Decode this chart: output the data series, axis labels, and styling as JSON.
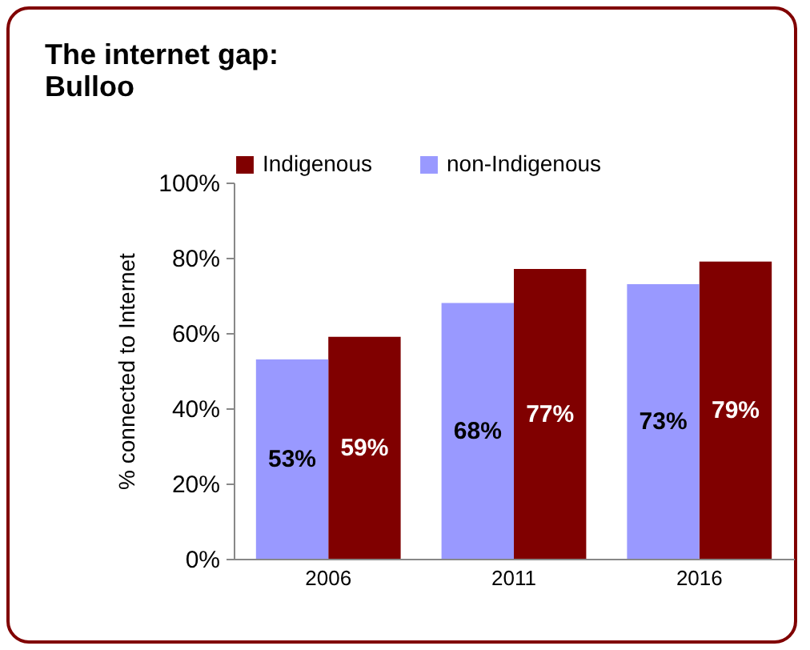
{
  "chart_data": {
    "type": "bar",
    "title": "The internet gap:",
    "subtitle": "Bulloo",
    "ylabel": "% connected to Internet",
    "categories": [
      "2006",
      "2011",
      "2016"
    ],
    "series": [
      {
        "name": "Indigenous",
        "color": "#800000",
        "values": [
          59,
          77,
          79
        ],
        "value_labels": [
          "59%",
          "77%",
          "79%"
        ]
      },
      {
        "name": "non-Indigenous",
        "color": "#9999ff",
        "values": [
          53,
          68,
          73
        ],
        "value_labels": [
          "53%",
          "68%",
          "73%"
        ]
      }
    ],
    "ylim": [
      0,
      100
    ],
    "yticks": [
      {
        "value": 0,
        "label": "0%"
      },
      {
        "value": 20,
        "label": "20%"
      },
      {
        "value": 40,
        "label": "40%"
      },
      {
        "value": 60,
        "label": "60%"
      },
      {
        "value": 80,
        "label": "80%"
      },
      {
        "value": 100,
        "label": "100%"
      }
    ],
    "grid": false,
    "legend": "top"
  }
}
